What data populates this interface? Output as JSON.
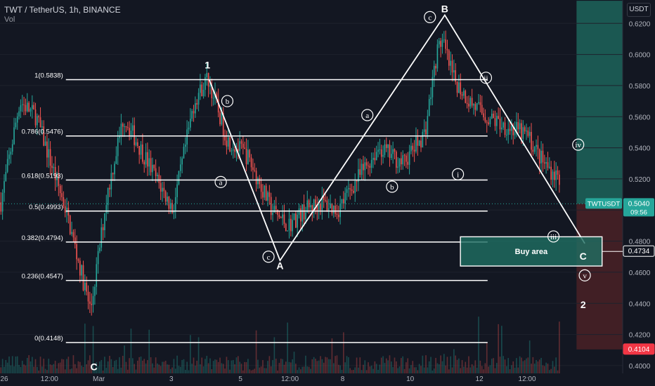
{
  "header": {
    "title": "TWT / TetherUS, 1h, BINANCE",
    "sub": "Vol",
    "currency": "USDT"
  },
  "colors": {
    "up": "#26a69a",
    "down": "#ef5350",
    "bg": "#131722",
    "line": "#ffffff",
    "target_zone": "#1f6f63",
    "stop_zone": "#5b2428"
  },
  "chart_data": {
    "type": "candlestick",
    "y_axis": {
      "min": 0.395,
      "max": 0.635,
      "ticks": [
        0.4,
        0.42,
        0.44,
        0.46,
        0.48,
        0.5,
        0.52,
        0.54,
        0.56,
        0.58,
        0.6,
        0.62
      ],
      "tick_labels": [
        "0.4000",
        "0.4200",
        "0.4400",
        "0.4600",
        "0.4800",
        "0.5000",
        "0.5200",
        "0.5400",
        "0.5600",
        "0.5800",
        "0.6000",
        "0.6200"
      ]
    },
    "x_axis": {
      "tick_labels": [
        "26",
        "12:00",
        "Mar",
        "3",
        "5",
        "12:00",
        "8",
        "10",
        "12",
        "12:00"
      ]
    },
    "price_path": [
      [
        0.55,
        0.505
      ],
      [
        12,
        0.57
      ],
      [
        22,
        0.56
      ],
      [
        40,
        0.5
      ],
      [
        55,
        0.435
      ],
      [
        65,
        0.51
      ],
      [
        75,
        0.56
      ],
      [
        90,
        0.53
      ],
      [
        105,
        0.5
      ],
      [
        118,
        0.57
      ],
      [
        126,
        0.585
      ],
      [
        138,
        0.545
      ],
      [
        150,
        0.535
      ],
      [
        165,
        0.5
      ],
      [
        175,
        0.49
      ],
      [
        185,
        0.5
      ],
      [
        195,
        0.505
      ],
      [
        205,
        0.5
      ],
      [
        215,
        0.517
      ],
      [
        230,
        0.54
      ],
      [
        245,
        0.53
      ],
      [
        258,
        0.55
      ],
      [
        265,
        0.6
      ],
      [
        268,
        0.61
      ],
      [
        275,
        0.585
      ],
      [
        285,
        0.57
      ],
      [
        295,
        0.56
      ],
      [
        305,
        0.555
      ],
      [
        320,
        0.548
      ],
      [
        330,
        0.53
      ],
      [
        340,
        0.52
      ]
    ],
    "fib_levels": [
      {
        "label": "1(0.5838)",
        "price": 0.5838
      },
      {
        "label": "0.786(0.5476)",
        "price": 0.5476
      },
      {
        "label": "0.618(0.5193)",
        "price": 0.5193
      },
      {
        "label": "0.5(0.4993)",
        "price": 0.4993
      },
      {
        "label": "0.382(0.4794)",
        "price": 0.4794
      },
      {
        "label": "0.236(0.4547)",
        "price": 0.4547
      },
      {
        "label": "0(0.4148)",
        "price": 0.4148
      }
    ],
    "wave_labels": [
      {
        "text": "1",
        "t": 126,
        "p": 0.591
      },
      {
        "text": "A",
        "t": 170,
        "p": 0.462
      },
      {
        "text": "B",
        "t": 270,
        "p": 0.627
      },
      {
        "text": "C",
        "t": 354,
        "p": 0.468
      },
      {
        "text": "2",
        "t": 354,
        "p": 0.437
      },
      {
        "text": "C",
        "t": 57,
        "p": 0.397
      },
      {
        "text": "b",
        "t": 138,
        "p": 0.57,
        "circle": true
      },
      {
        "text": "a",
        "t": 134,
        "p": 0.518,
        "circle": true
      },
      {
        "text": "c",
        "t": 163,
        "p": 0.47,
        "circle": true
      },
      {
        "text": "a",
        "t": 223,
        "p": 0.561,
        "circle": true
      },
      {
        "text": "b",
        "t": 238,
        "p": 0.515,
        "circle": true
      },
      {
        "text": "c",
        "t": 261,
        "p": 0.624,
        "circle": true
      },
      {
        "text": "ii",
        "t": 295,
        "p": 0.585,
        "circle": true
      },
      {
        "text": "i",
        "t": 278,
        "p": 0.523,
        "circle": true
      },
      {
        "text": "iv",
        "t": 351,
        "p": 0.542,
        "circle": true
      },
      {
        "text": "iii",
        "t": 336,
        "p": 0.483,
        "circle": true
      },
      {
        "text": "v",
        "t": 355,
        "p": 0.458,
        "circle": true
      }
    ],
    "impulse_lines": [
      [
        [
          127,
          0.5838
        ],
        [
          170,
          0.4676
        ],
        [
          270,
          0.6253
        ],
        [
          355,
          0.4785
        ]
      ]
    ],
    "buy_area": {
      "label": "Buy area",
      "top": 0.4828,
      "bottom": 0.464
    },
    "price_tags": [
      {
        "label": "TWTUSDT",
        "value": "0.5040",
        "sub": "09:56",
        "price": 0.504,
        "kind": "current"
      },
      {
        "label": "",
        "value": "0.4734",
        "price": 0.4734,
        "kind": "target"
      },
      {
        "label": "",
        "value": "0.4104",
        "price": 0.4104,
        "kind": "stop"
      }
    ],
    "zones": [
      {
        "kind": "target",
        "from": 0.504,
        "to": 0.6345
      },
      {
        "kind": "stop",
        "from": 0.504,
        "to": 0.4104
      }
    ]
  }
}
